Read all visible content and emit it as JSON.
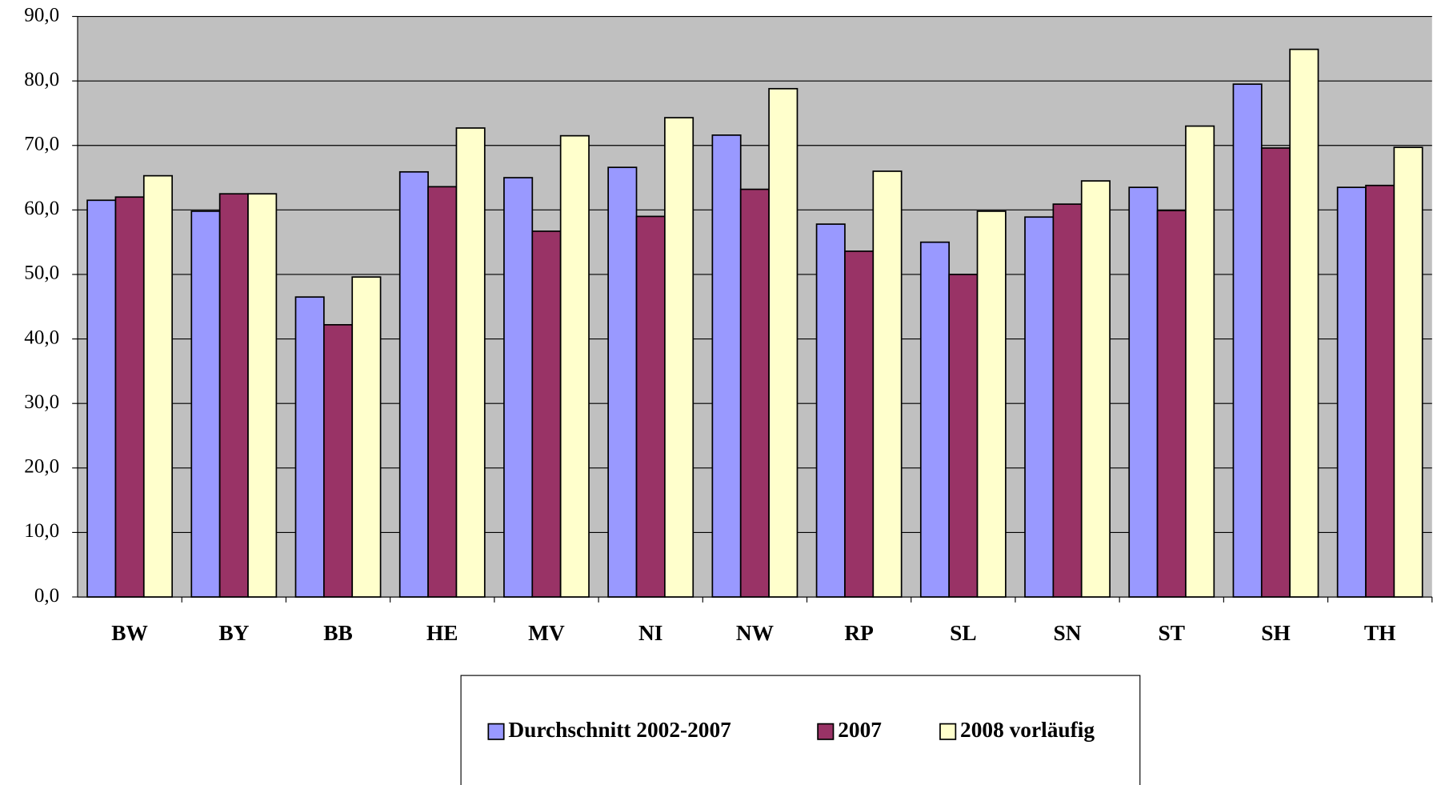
{
  "chart_data": {
    "type": "bar",
    "categories": [
      "BW",
      "BY",
      "BB",
      "HE",
      "MV",
      "NI",
      "NW",
      "RP",
      "SL",
      "SN",
      "ST",
      "SH",
      "TH"
    ],
    "series": [
      {
        "name": "Durchschnitt 2002-2007",
        "color": "#9999ff",
        "values": [
          61.5,
          59.8,
          46.5,
          65.9,
          65.0,
          66.6,
          71.6,
          57.8,
          55.0,
          58.9,
          63.5,
          79.5,
          63.5
        ]
      },
      {
        "name": "2007",
        "color": "#993366",
        "values": [
          62.0,
          62.5,
          42.2,
          63.6,
          56.7,
          59.0,
          63.2,
          53.6,
          50.0,
          60.9,
          59.9,
          69.6,
          63.8
        ]
      },
      {
        "name": "2008 vorläufig",
        "color": "#ffffcc",
        "values": [
          65.3,
          62.5,
          49.6,
          72.7,
          71.5,
          74.3,
          78.8,
          66.0,
          59.8,
          64.5,
          73.0,
          84.9,
          69.7
        ]
      }
    ],
    "ylim": [
      0,
      90
    ],
    "yticks": [
      {
        "value": 0,
        "label": "0,0"
      },
      {
        "value": 10,
        "label": "10,0"
      },
      {
        "value": 20,
        "label": "20,0"
      },
      {
        "value": 30,
        "label": "30,0"
      },
      {
        "value": 40,
        "label": "40,0"
      },
      {
        "value": 50,
        "label": "50,0"
      },
      {
        "value": 60,
        "label": "60,0"
      },
      {
        "value": 70,
        "label": "70,0"
      },
      {
        "value": 80,
        "label": "80,0"
      },
      {
        "value": 90,
        "label": "90,0"
      }
    ],
    "grid": true,
    "plot_background": "#c0c0c0"
  }
}
